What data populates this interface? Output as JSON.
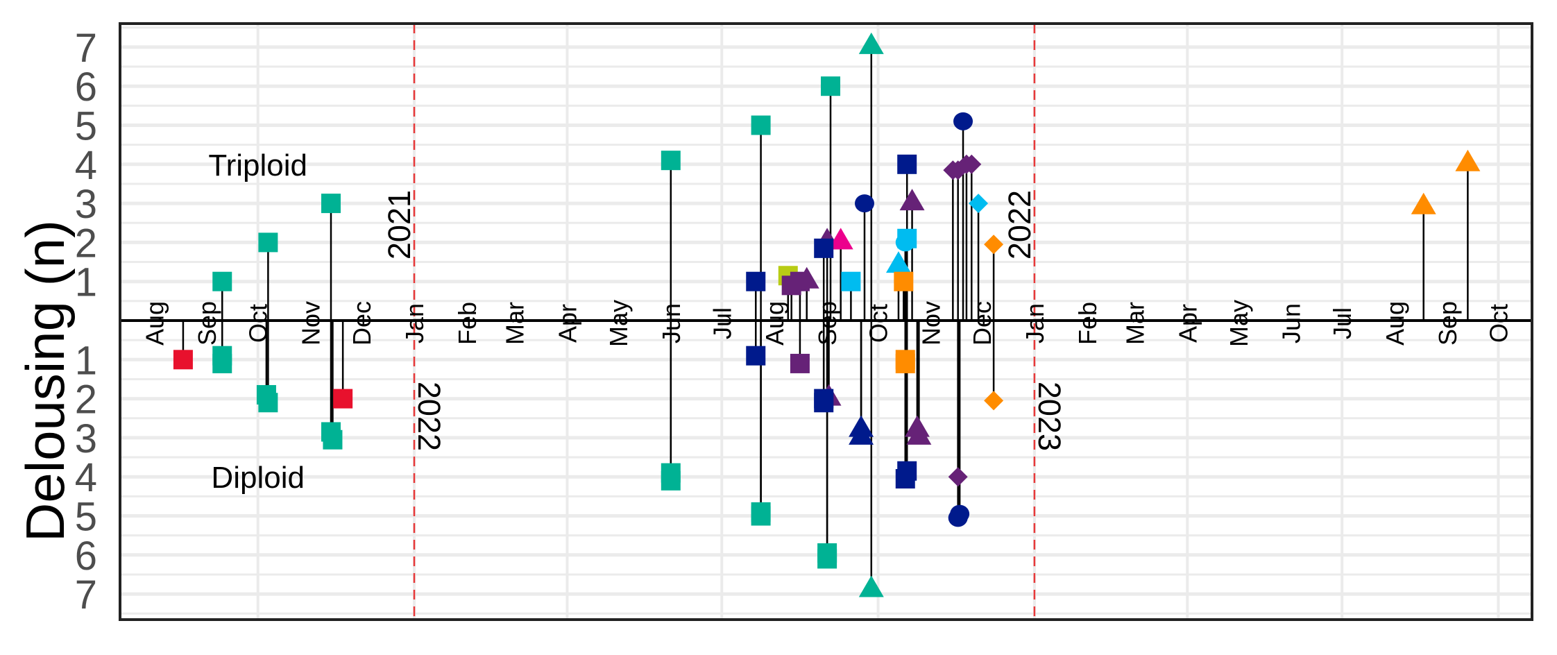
{
  "chart_data": {
    "type": "scatter",
    "subtype": "lollipop",
    "title": "",
    "xlabel": "",
    "ylabel": "Delousing (n)",
    "xlim": [
      "2021-07-12",
      "2023-10-20"
    ],
    "ylim": [
      -7.6,
      7.6
    ],
    "grid": true,
    "legend": "none",
    "y_ticks": [
      7,
      6,
      5,
      4,
      3,
      2,
      1,
      -1,
      -2,
      -3,
      -4,
      -5,
      -6,
      -7
    ],
    "y_tick_labels": [
      "7",
      "6",
      "5",
      "4",
      "3",
      "2",
      "1",
      "1",
      "2",
      "3",
      "4",
      "5",
      "6",
      "7"
    ],
    "x_ticks": [
      {
        "date": "2021-08-01",
        "label": "Aug"
      },
      {
        "date": "2021-09-01",
        "label": "Sep"
      },
      {
        "date": "2021-10-01",
        "label": "Oct"
      },
      {
        "date": "2021-11-01",
        "label": "Nov"
      },
      {
        "date": "2021-12-01",
        "label": "Dec"
      },
      {
        "date": "2022-01-01",
        "label": "Jan"
      },
      {
        "date": "2022-02-01",
        "label": "Feb"
      },
      {
        "date": "2022-03-01",
        "label": "Mar"
      },
      {
        "date": "2022-04-01",
        "label": "Apr"
      },
      {
        "date": "2022-05-01",
        "label": "May"
      },
      {
        "date": "2022-06-01",
        "label": "Jun"
      },
      {
        "date": "2022-07-01",
        "label": "Jul"
      },
      {
        "date": "2022-08-01",
        "label": "Aug"
      },
      {
        "date": "2022-09-01",
        "label": "Sep"
      },
      {
        "date": "2022-10-01",
        "label": "Oct"
      },
      {
        "date": "2022-11-01",
        "label": "Nov"
      },
      {
        "date": "2022-12-01",
        "label": "Dec"
      },
      {
        "date": "2023-01-01",
        "label": "Jan"
      },
      {
        "date": "2023-02-01",
        "label": "Feb"
      },
      {
        "date": "2023-03-01",
        "label": "Mar"
      },
      {
        "date": "2023-04-01",
        "label": "Apr"
      },
      {
        "date": "2023-05-01",
        "label": "May"
      },
      {
        "date": "2023-06-01",
        "label": "Jun"
      },
      {
        "date": "2023-07-01",
        "label": "Jul"
      },
      {
        "date": "2023-08-01",
        "label": "Aug"
      },
      {
        "date": "2023-09-01",
        "label": "Sep"
      },
      {
        "date": "2023-10-01",
        "label": "Oct"
      }
    ],
    "x_gridlines": [
      "2021-10-01",
      "2022-01-01",
      "2022-04-01",
      "2022-07-01",
      "2022-10-01",
      "2023-01-01",
      "2023-04-01",
      "2023-07-01",
      "2023-10-01"
    ],
    "year_dividers": [
      {
        "date": "2022-01-01",
        "above": "2021",
        "below": "2022"
      },
      {
        "date": "2023-01-01",
        "above": "2022",
        "below": "2023"
      }
    ],
    "annotations": [
      {
        "text": "Triploid",
        "date": "2021-10-01",
        "y": 4
      },
      {
        "text": "Diploid",
        "date": "2021-10-01",
        "y": -4
      }
    ],
    "colors": {
      "teal": "#00b294",
      "red": "#e8112d",
      "navy": "#001a8c",
      "purple": "#662277",
      "pink": "#ec008c",
      "cyan": "#00bcf0",
      "orange": "#ff8c00",
      "lime": "#b8cc14",
      "divider": "#e8393a",
      "grid": "#ebebeb"
    },
    "points": [
      {
        "date": "2021-09-10",
        "y": 1,
        "color": "teal",
        "shape": "square"
      },
      {
        "date": "2021-10-07",
        "y": 2,
        "color": "teal",
        "shape": "square"
      },
      {
        "date": "2021-11-13",
        "y": 3,
        "color": "teal",
        "shape": "square"
      },
      {
        "date": "2022-06-01",
        "y": 4.1,
        "color": "teal",
        "shape": "square"
      },
      {
        "date": "2022-07-24",
        "y": 5,
        "color": "teal",
        "shape": "square"
      },
      {
        "date": "2022-07-21",
        "y": 1,
        "color": "navy",
        "shape": "square"
      },
      {
        "date": "2022-08-09",
        "y": 1.15,
        "color": "lime",
        "shape": "square"
      },
      {
        "date": "2022-08-20",
        "y": 1,
        "color": "purple",
        "shape": "triangle"
      },
      {
        "date": "2022-08-11",
        "y": 0.9,
        "color": "purple",
        "shape": "square"
      },
      {
        "date": "2022-08-16",
        "y": 1,
        "color": "purple",
        "shape": "square"
      },
      {
        "date": "2022-09-03",
        "y": 6,
        "color": "teal",
        "shape": "square"
      },
      {
        "date": "2022-09-01",
        "y": 2,
        "color": "purple",
        "shape": "triangle"
      },
      {
        "date": "2022-09-09",
        "y": 2,
        "color": "pink",
        "shape": "triangle"
      },
      {
        "date": "2022-08-30",
        "y": 1.85,
        "color": "navy",
        "shape": "square"
      },
      {
        "date": "2022-09-15",
        "y": 1,
        "color": "cyan",
        "shape": "square"
      },
      {
        "date": "2022-09-23",
        "y": 3,
        "color": "navy",
        "shape": "circle"
      },
      {
        "date": "2022-09-27",
        "y": 7,
        "color": "teal",
        "shape": "triangle"
      },
      {
        "date": "2022-10-18",
        "y": 4,
        "color": "navy",
        "shape": "square"
      },
      {
        "date": "2022-10-21",
        "y": 3,
        "color": "purple",
        "shape": "triangle"
      },
      {
        "date": "2022-10-17",
        "y": 2,
        "color": "cyan",
        "shape": "circle"
      },
      {
        "date": "2022-10-18",
        "y": 2.1,
        "color": "cyan",
        "shape": "square"
      },
      {
        "date": "2022-10-13",
        "y": 1.4,
        "color": "cyan",
        "shape": "triangle"
      },
      {
        "date": "2022-10-16",
        "y": 1,
        "color": "orange",
        "shape": "square"
      },
      {
        "date": "2022-11-20",
        "y": 5.1,
        "color": "navy",
        "shape": "circle"
      },
      {
        "date": "2022-11-14",
        "y": 3.85,
        "color": "purple",
        "shape": "diamond"
      },
      {
        "date": "2022-11-17",
        "y": 3.85,
        "color": "purple",
        "shape": "diamond"
      },
      {
        "date": "2022-11-22",
        "y": 4,
        "color": "purple",
        "shape": "diamond"
      },
      {
        "date": "2022-11-25",
        "y": 4,
        "color": "purple",
        "shape": "diamond"
      },
      {
        "date": "2022-11-29",
        "y": 3,
        "color": "cyan",
        "shape": "diamond"
      },
      {
        "date": "2022-12-08",
        "y": 1.95,
        "color": "orange",
        "shape": "diamond"
      },
      {
        "date": "2023-08-18",
        "y": 2.9,
        "color": "orange",
        "shape": "triangle"
      },
      {
        "date": "2023-09-13",
        "y": 4,
        "color": "orange",
        "shape": "triangle"
      },
      {
        "date": "2021-08-18",
        "y": -1,
        "color": "red",
        "shape": "square"
      },
      {
        "date": "2021-09-10",
        "y": -0.9,
        "color": "teal",
        "shape": "square"
      },
      {
        "date": "2021-09-10",
        "y": -1.1,
        "color": "teal",
        "shape": "square"
      },
      {
        "date": "2021-10-06",
        "y": -1.9,
        "color": "teal",
        "shape": "square"
      },
      {
        "date": "2021-10-07",
        "y": -2.1,
        "color": "teal",
        "shape": "square"
      },
      {
        "date": "2021-11-13",
        "y": -2.85,
        "color": "teal",
        "shape": "square"
      },
      {
        "date": "2021-11-14",
        "y": -3.05,
        "color": "teal",
        "shape": "square"
      },
      {
        "date": "2021-11-20",
        "y": -2,
        "color": "red",
        "shape": "square"
      },
      {
        "date": "2022-06-01",
        "y": -3.9,
        "color": "teal",
        "shape": "square"
      },
      {
        "date": "2022-06-01",
        "y": -4.1,
        "color": "teal",
        "shape": "square"
      },
      {
        "date": "2022-07-21",
        "y": -0.9,
        "color": "navy",
        "shape": "square"
      },
      {
        "date": "2022-07-24",
        "y": -4.9,
        "color": "teal",
        "shape": "square"
      },
      {
        "date": "2022-07-24",
        "y": -5,
        "color": "teal",
        "shape": "square"
      },
      {
        "date": "2022-08-16",
        "y": -1.1,
        "color": "purple",
        "shape": "square"
      },
      {
        "date": "2022-09-02",
        "y": -2,
        "color": "purple",
        "shape": "triangle"
      },
      {
        "date": "2022-08-30",
        "y": -2,
        "color": "navy",
        "shape": "square"
      },
      {
        "date": "2022-08-30",
        "y": -2.1,
        "color": "navy",
        "shape": "square"
      },
      {
        "date": "2022-09-01",
        "y": -5.95,
        "color": "teal",
        "shape": "square"
      },
      {
        "date": "2022-09-01",
        "y": -6.1,
        "color": "teal",
        "shape": "square"
      },
      {
        "date": "2022-09-21",
        "y": -2.8,
        "color": "navy",
        "shape": "triangle"
      },
      {
        "date": "2022-09-21",
        "y": -3,
        "color": "navy",
        "shape": "triangle"
      },
      {
        "date": "2022-09-27",
        "y": -6.9,
        "color": "teal",
        "shape": "triangle"
      },
      {
        "date": "2022-10-17",
        "y": -1,
        "color": "orange",
        "shape": "square"
      },
      {
        "date": "2022-10-17",
        "y": -1.1,
        "color": "orange",
        "shape": "square"
      },
      {
        "date": "2022-10-18",
        "y": -3.85,
        "color": "navy",
        "shape": "square"
      },
      {
        "date": "2022-10-17",
        "y": -4.05,
        "color": "navy",
        "shape": "square"
      },
      {
        "date": "2022-10-24",
        "y": -2.8,
        "color": "purple",
        "shape": "triangle"
      },
      {
        "date": "2022-10-25",
        "y": -3,
        "color": "purple",
        "shape": "triangle"
      },
      {
        "date": "2022-11-17",
        "y": -4,
        "color": "purple",
        "shape": "diamond"
      },
      {
        "date": "2022-11-18",
        "y": -4.95,
        "color": "navy",
        "shape": "circle"
      },
      {
        "date": "2022-11-17",
        "y": -5.05,
        "color": "navy",
        "shape": "circle"
      },
      {
        "date": "2022-12-08",
        "y": -2.05,
        "color": "orange",
        "shape": "diamond"
      }
    ]
  }
}
